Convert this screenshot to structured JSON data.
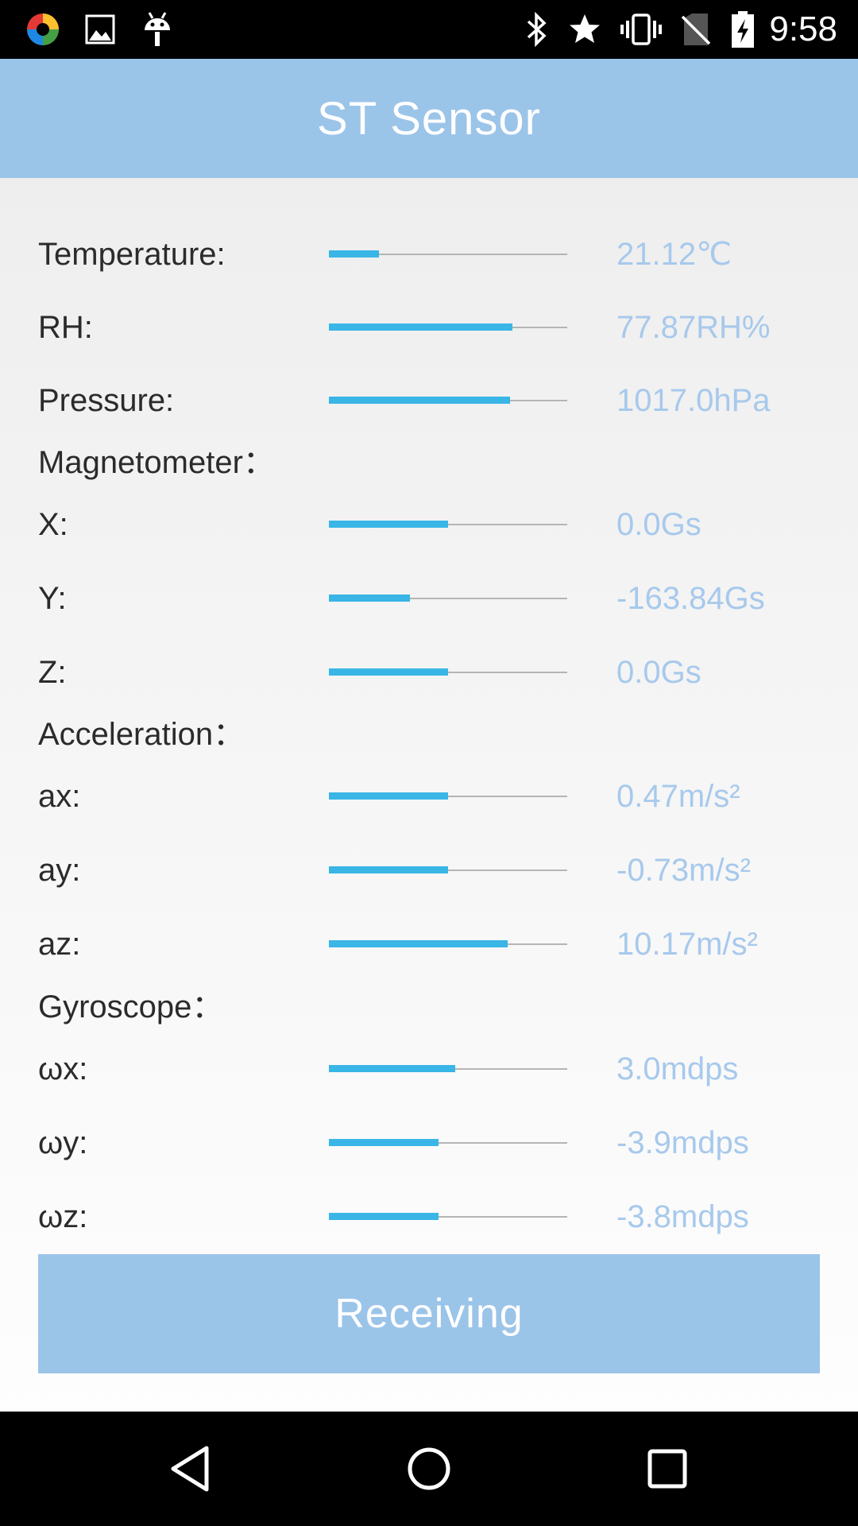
{
  "status_bar": {
    "time": "9:58",
    "icons_left": [
      "app-logo-icon",
      "image-icon",
      "android-icon"
    ],
    "icons_right": [
      "bluetooth-icon",
      "star-icon",
      "vibrate-icon",
      "no-sim-icon",
      "battery-charging-icon"
    ]
  },
  "app_bar": {
    "title": "ST Sensor"
  },
  "sensors": {
    "temperature": {
      "label": "Temperature:",
      "value": "21.12℃",
      "level": 0.21
    },
    "rh": {
      "label": "RH:",
      "value": "77.87RH%",
      "level": 0.77
    },
    "pressure": {
      "label": "Pressure:",
      "value": "1017.0hPa",
      "level": 0.76
    },
    "magnetometer": {
      "title": "Magnetometer：",
      "x": {
        "label": "X:",
        "value": "0.0Gs",
        "level": 0.5
      },
      "y": {
        "label": "Y:",
        "value": "-163.84Gs",
        "level": 0.34
      },
      "z": {
        "label": "Z:",
        "value": "0.0Gs",
        "level": 0.5
      }
    },
    "acceleration": {
      "title": "Acceleration：",
      "ax": {
        "label": "ax:",
        "value": "0.47m/s²",
        "level": 0.5
      },
      "ay": {
        "label": "ay:",
        "value": "-0.73m/s²",
        "level": 0.5
      },
      "az": {
        "label": "az:",
        "value": "10.17m/s²",
        "level": 0.75
      }
    },
    "gyroscope": {
      "title": "Gyroscope：",
      "wx": {
        "label": "ωx:",
        "value": "3.0mdps",
        "level": 0.53
      },
      "wy": {
        "label": "ωy:",
        "value": "-3.9mdps",
        "level": 0.46
      },
      "wz": {
        "label": "ωz:",
        "value": "-3.8mdps",
        "level": 0.46
      }
    }
  },
  "button": {
    "label": "Receiving"
  },
  "colors": {
    "accent": "#9bc4e9",
    "bar_fill": "#39b5e6",
    "value_text": "#a7c9ec"
  },
  "nav_bar": {
    "buttons": [
      "back-icon",
      "home-icon",
      "recents-icon"
    ]
  }
}
